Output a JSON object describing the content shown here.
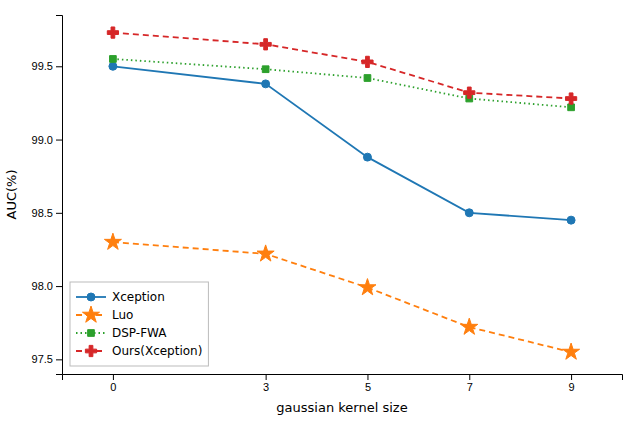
{
  "chart_data": {
    "type": "line",
    "xlabel": "gaussian kernel size",
    "ylabel": "AUC(%)",
    "x": [
      0,
      3,
      5,
      7,
      9
    ],
    "xlim": [
      -1,
      10
    ],
    "xticks": [
      0,
      3,
      5,
      7,
      9
    ],
    "ylim": [
      97.4,
      99.85
    ],
    "yticks": [
      97.5,
      {
        "value": 98.0,
        "label": "98.0"
      },
      98.5,
      {
        "value": 99.0,
        "label": "99.0"
      },
      99.5
    ],
    "legend": "lower left",
    "grid": false,
    "series": [
      {
        "name": "Xception",
        "color": "#1f77b4",
        "marker": "circle",
        "line_style": "solid",
        "values": [
          99.5,
          99.38,
          98.88,
          98.5,
          98.45
        ]
      },
      {
        "name": "Luo",
        "color": "#ff7f0e",
        "marker": "star",
        "line_style": "dashed",
        "values": [
          98.3,
          98.22,
          97.99,
          97.72,
          97.55
        ]
      },
      {
        "name": "DSP-FWA",
        "color": "#2ca02c",
        "marker": "square",
        "line_style": "dotted",
        "values": [
          99.55,
          99.48,
          99.42,
          99.28,
          99.22
        ]
      },
      {
        "name": "Ours(Xception)",
        "color": "#d62728",
        "marker": "plus",
        "line_style": "dashed",
        "values": [
          99.73,
          99.65,
          99.53,
          99.32,
          99.28
        ]
      }
    ]
  }
}
